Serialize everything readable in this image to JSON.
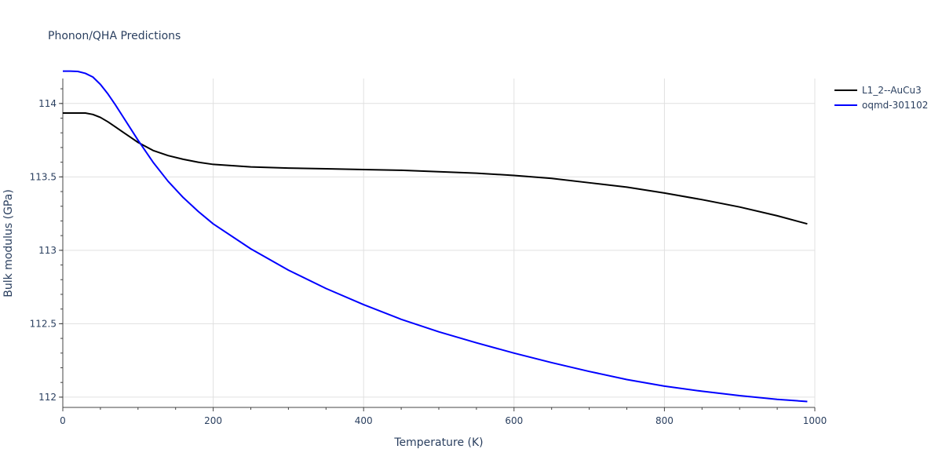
{
  "chart_data": {
    "type": "line",
    "title": "Phonon/QHA Predictions",
    "xlabel": "Temperature (K)",
    "ylabel": "Bulk modulus (GPa)",
    "xlim": [
      0,
      1000
    ],
    "ylim": [
      111.93,
      114.17
    ],
    "x_ticks": [
      0,
      200,
      400,
      600,
      800,
      1000
    ],
    "x_tick_labels": [
      "0",
      "200",
      "400",
      "600",
      "800",
      "1000"
    ],
    "y_ticks": [
      112,
      112.5,
      113,
      113.5,
      114
    ],
    "y_tick_labels": [
      "112",
      "112.5",
      "113",
      "113.5",
      "114"
    ],
    "grid": true,
    "legend_position": "top-right",
    "series": [
      {
        "name": "L1_2--AuCu3",
        "color": "#000000",
        "x": [
          0,
          10,
          20,
          30,
          40,
          50,
          60,
          70,
          80,
          90,
          100,
          120,
          140,
          160,
          180,
          200,
          250,
          300,
          350,
          400,
          450,
          500,
          550,
          600,
          650,
          700,
          750,
          800,
          850,
          900,
          950,
          990
        ],
        "y": [
          113.935,
          113.935,
          113.935,
          113.935,
          113.925,
          113.905,
          113.875,
          113.84,
          113.805,
          113.77,
          113.735,
          113.68,
          113.645,
          113.62,
          113.6,
          113.585,
          113.568,
          113.56,
          113.555,
          113.55,
          113.545,
          113.535,
          113.525,
          113.51,
          113.49,
          113.46,
          113.43,
          113.39,
          113.345,
          113.295,
          113.235,
          113.18
        ]
      },
      {
        "name": "oqmd-301102",
        "color": "#0000ff",
        "x": [
          0,
          10,
          20,
          30,
          40,
          50,
          60,
          70,
          80,
          90,
          100,
          120,
          140,
          160,
          180,
          200,
          250,
          300,
          350,
          400,
          450,
          500,
          550,
          600,
          650,
          700,
          750,
          800,
          850,
          900,
          950,
          990
        ],
        "y": [
          114.22,
          114.22,
          114.218,
          114.205,
          114.18,
          114.13,
          114.065,
          113.99,
          113.91,
          113.83,
          113.75,
          113.6,
          113.47,
          113.36,
          113.265,
          113.18,
          113.01,
          112.865,
          112.74,
          112.63,
          112.53,
          112.445,
          112.37,
          112.3,
          112.235,
          112.175,
          112.12,
          112.075,
          112.04,
          112.01,
          111.985,
          111.97
        ]
      }
    ]
  }
}
